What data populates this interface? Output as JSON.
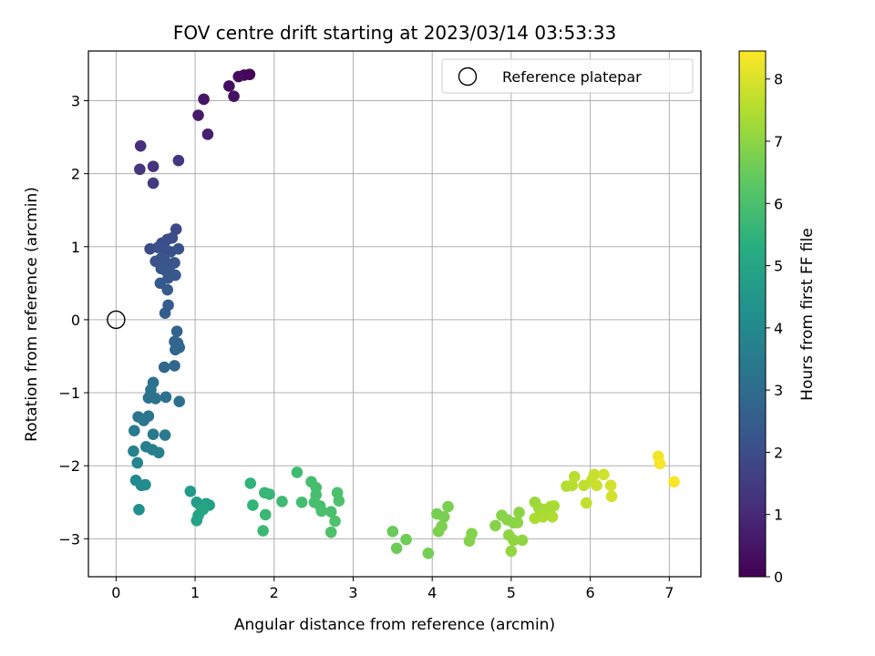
{
  "chart_data": {
    "type": "scatter",
    "title": "FOV centre drift starting at 2023/03/14 03:53:33",
    "xlabel": "Angular distance from reference (arcmin)",
    "ylabel": "Rotation from reference (arcmin)",
    "colorbar_label": "Hours from first FF file",
    "xlim": [
      -0.35,
      7.4
    ],
    "ylim": [
      -3.52,
      3.68
    ],
    "clim": [
      0,
      8.45
    ],
    "x_ticks": [
      0,
      1,
      2,
      3,
      4,
      5,
      6,
      7
    ],
    "y_ticks": [
      -3,
      -2,
      -1,
      0,
      1,
      2,
      3
    ],
    "colorbar_ticks": [
      0,
      1,
      2,
      3,
      4,
      5,
      6,
      7,
      8
    ],
    "grid": true,
    "colormap": "viridis",
    "legend": {
      "placement": "top-right",
      "entries": [
        "Reference platepar"
      ]
    },
    "reference_point": {
      "x": 0,
      "y": 0
    },
    "points": [
      {
        "x": 1.69,
        "y": 3.36,
        "t": 0.05
      },
      {
        "x": 1.62,
        "y": 3.35,
        "t": 0.15
      },
      {
        "x": 1.55,
        "y": 3.33,
        "t": 0.25
      },
      {
        "x": 1.43,
        "y": 3.2,
        "t": 0.35
      },
      {
        "x": 1.49,
        "y": 3.06,
        "t": 0.45
      },
      {
        "x": 1.11,
        "y": 3.02,
        "t": 0.55
      },
      {
        "x": 1.04,
        "y": 2.8,
        "t": 0.65
      },
      {
        "x": 1.16,
        "y": 2.54,
        "t": 0.75
      },
      {
        "x": 0.31,
        "y": 2.38,
        "t": 1.15
      },
      {
        "x": 0.47,
        "y": 2.1,
        "t": 1.25
      },
      {
        "x": 0.3,
        "y": 2.06,
        "t": 1.3
      },
      {
        "x": 0.79,
        "y": 2.18,
        "t": 1.35
      },
      {
        "x": 0.47,
        "y": 1.87,
        "t": 1.45
      },
      {
        "x": 0.76,
        "y": 1.24,
        "t": 1.85
      },
      {
        "x": 0.43,
        "y": 0.97,
        "t": 1.9
      },
      {
        "x": 0.58,
        "y": 1.05,
        "t": 1.95
      },
      {
        "x": 0.65,
        "y": 1.1,
        "t": 2.0
      },
      {
        "x": 0.71,
        "y": 1.12,
        "t": 2.02
      },
      {
        "x": 0.53,
        "y": 0.99,
        "t": 2.05
      },
      {
        "x": 0.62,
        "y": 0.97,
        "t": 2.1
      },
      {
        "x": 0.79,
        "y": 0.97,
        "t": 2.12
      },
      {
        "x": 0.69,
        "y": 0.93,
        "t": 2.15
      },
      {
        "x": 0.5,
        "y": 0.8,
        "t": 2.18
      },
      {
        "x": 0.57,
        "y": 0.84,
        "t": 2.2
      },
      {
        "x": 0.62,
        "y": 0.8,
        "t": 2.22
      },
      {
        "x": 0.74,
        "y": 0.78,
        "t": 2.24
      },
      {
        "x": 0.68,
        "y": 0.73,
        "t": 2.26
      },
      {
        "x": 0.57,
        "y": 0.7,
        "t": 2.28
      },
      {
        "x": 0.63,
        "y": 0.67,
        "t": 2.3
      },
      {
        "x": 0.75,
        "y": 0.61,
        "t": 2.32
      },
      {
        "x": 0.66,
        "y": 0.57,
        "t": 2.34
      },
      {
        "x": 0.56,
        "y": 0.5,
        "t": 2.36
      },
      {
        "x": 0.65,
        "y": 0.41,
        "t": 2.4
      },
      {
        "x": 0.66,
        "y": 0.2,
        "t": 2.45
      },
      {
        "x": 0.62,
        "y": 0.09,
        "t": 2.5
      },
      {
        "x": 0.77,
        "y": -0.16,
        "t": 2.7
      },
      {
        "x": 0.74,
        "y": -0.3,
        "t": 2.75
      },
      {
        "x": 0.78,
        "y": -0.32,
        "t": 2.78
      },
      {
        "x": 0.8,
        "y": -0.38,
        "t": 2.8
      },
      {
        "x": 0.75,
        "y": -0.41,
        "t": 2.82
      },
      {
        "x": 0.61,
        "y": -0.65,
        "t": 2.85
      },
      {
        "x": 0.74,
        "y": -0.63,
        "t": 2.88
      },
      {
        "x": 0.8,
        "y": -1.12,
        "t": 3.1
      },
      {
        "x": 0.63,
        "y": -1.06,
        "t": 3.15
      },
      {
        "x": 0.5,
        "y": -1.08,
        "t": 3.18
      },
      {
        "x": 0.47,
        "y": -0.86,
        "t": 3.2
      },
      {
        "x": 0.44,
        "y": -0.96,
        "t": 3.22
      },
      {
        "x": 0.41,
        "y": -1.07,
        "t": 3.25
      },
      {
        "x": 0.41,
        "y": -1.32,
        "t": 3.3
      },
      {
        "x": 0.28,
        "y": -1.33,
        "t": 3.35
      },
      {
        "x": 0.35,
        "y": -1.38,
        "t": 3.38
      },
      {
        "x": 0.62,
        "y": -1.58,
        "t": 3.4
      },
      {
        "x": 0.47,
        "y": -1.57,
        "t": 3.45
      },
      {
        "x": 0.23,
        "y": -1.52,
        "t": 3.5
      },
      {
        "x": 0.38,
        "y": -1.74,
        "t": 3.6
      },
      {
        "x": 0.46,
        "y": -1.78,
        "t": 3.65
      },
      {
        "x": 0.54,
        "y": -1.82,
        "t": 3.7
      },
      {
        "x": 0.22,
        "y": -1.8,
        "t": 3.75
      },
      {
        "x": 0.27,
        "y": -1.96,
        "t": 3.8
      },
      {
        "x": 0.25,
        "y": -2.2,
        "t": 4.0
      },
      {
        "x": 0.32,
        "y": -2.27,
        "t": 4.05
      },
      {
        "x": 0.37,
        "y": -2.26,
        "t": 4.1
      },
      {
        "x": 0.29,
        "y": -2.6,
        "t": 4.2
      },
      {
        "x": 0.94,
        "y": -2.35,
        "t": 4.6
      },
      {
        "x": 1.02,
        "y": -2.5,
        "t": 4.7
      },
      {
        "x": 1.08,
        "y": -2.57,
        "t": 4.75
      },
      {
        "x": 1.14,
        "y": -2.52,
        "t": 4.8
      },
      {
        "x": 1.18,
        "y": -2.54,
        "t": 4.85
      },
      {
        "x": 1.04,
        "y": -2.68,
        "t": 4.9
      },
      {
        "x": 1.02,
        "y": -2.75,
        "t": 4.95
      },
      {
        "x": 1.1,
        "y": -2.6,
        "t": 5.0
      },
      {
        "x": 1.7,
        "y": -2.24,
        "t": 5.5
      },
      {
        "x": 1.73,
        "y": -2.54,
        "t": 5.55
      },
      {
        "x": 1.88,
        "y": -2.37,
        "t": 5.6
      },
      {
        "x": 1.94,
        "y": -2.39,
        "t": 5.62
      },
      {
        "x": 1.89,
        "y": -2.67,
        "t": 5.65
      },
      {
        "x": 1.86,
        "y": -2.89,
        "t": 5.7
      },
      {
        "x": 2.1,
        "y": -2.49,
        "t": 5.75
      },
      {
        "x": 2.29,
        "y": -2.09,
        "t": 5.8
      },
      {
        "x": 2.35,
        "y": -2.5,
        "t": 5.85
      },
      {
        "x": 2.47,
        "y": -2.22,
        "t": 5.88
      },
      {
        "x": 2.53,
        "y": -2.3,
        "t": 5.9
      },
      {
        "x": 2.53,
        "y": -2.4,
        "t": 5.92
      },
      {
        "x": 2.51,
        "y": -2.5,
        "t": 5.94
      },
      {
        "x": 2.58,
        "y": -2.55,
        "t": 5.96
      },
      {
        "x": 2.6,
        "y": -2.62,
        "t": 5.98
      },
      {
        "x": 2.72,
        "y": -2.63,
        "t": 6.0
      },
      {
        "x": 2.8,
        "y": -2.37,
        "t": 6.02
      },
      {
        "x": 2.82,
        "y": -2.48,
        "t": 6.04
      },
      {
        "x": 2.77,
        "y": -2.76,
        "t": 6.06
      },
      {
        "x": 2.72,
        "y": -2.91,
        "t": 6.08
      },
      {
        "x": 3.5,
        "y": -2.9,
        "t": 6.5
      },
      {
        "x": 3.55,
        "y": -3.13,
        "t": 6.55
      },
      {
        "x": 3.67,
        "y": -3.01,
        "t": 6.6
      },
      {
        "x": 3.95,
        "y": -3.2,
        "t": 6.65
      },
      {
        "x": 4.06,
        "y": -2.66,
        "t": 6.7
      },
      {
        "x": 4.15,
        "y": -2.7,
        "t": 6.72
      },
      {
        "x": 4.2,
        "y": -2.56,
        "t": 6.75
      },
      {
        "x": 4.12,
        "y": -2.83,
        "t": 6.78
      },
      {
        "x": 4.08,
        "y": -2.9,
        "t": 6.8
      },
      {
        "x": 4.5,
        "y": -2.93,
        "t": 6.85
      },
      {
        "x": 4.47,
        "y": -3.03,
        "t": 6.88
      },
      {
        "x": 4.8,
        "y": -2.82,
        "t": 6.9
      },
      {
        "x": 4.88,
        "y": -2.68,
        "t": 6.92
      },
      {
        "x": 4.95,
        "y": -2.74,
        "t": 6.94
      },
      {
        "x": 5.03,
        "y": -2.78,
        "t": 6.96
      },
      {
        "x": 5.1,
        "y": -2.64,
        "t": 6.98
      },
      {
        "x": 5.08,
        "y": -2.78,
        "t": 7.0
      },
      {
        "x": 4.97,
        "y": -2.95,
        "t": 7.02
      },
      {
        "x": 5.03,
        "y": -3.02,
        "t": 7.04
      },
      {
        "x": 5.14,
        "y": -3.02,
        "t": 7.06
      },
      {
        "x": 5.0,
        "y": -3.17,
        "t": 7.08
      },
      {
        "x": 5.3,
        "y": -2.5,
        "t": 7.2
      },
      {
        "x": 5.35,
        "y": -2.58,
        "t": 7.25
      },
      {
        "x": 5.42,
        "y": -2.6,
        "t": 7.3
      },
      {
        "x": 5.5,
        "y": -2.56,
        "t": 7.35
      },
      {
        "x": 5.54,
        "y": -2.55,
        "t": 7.38
      },
      {
        "x": 5.3,
        "y": -2.72,
        "t": 7.4
      },
      {
        "x": 5.4,
        "y": -2.7,
        "t": 7.42
      },
      {
        "x": 5.52,
        "y": -2.7,
        "t": 7.44
      },
      {
        "x": 5.7,
        "y": -2.28,
        "t": 7.5
      },
      {
        "x": 5.77,
        "y": -2.27,
        "t": 7.55
      },
      {
        "x": 5.8,
        "y": -2.15,
        "t": 7.6
      },
      {
        "x": 5.92,
        "y": -2.27,
        "t": 7.65
      },
      {
        "x": 5.95,
        "y": -2.51,
        "t": 7.68
      },
      {
        "x": 6.02,
        "y": -2.2,
        "t": 7.7
      },
      {
        "x": 6.05,
        "y": -2.12,
        "t": 7.75
      },
      {
        "x": 6.08,
        "y": -2.27,
        "t": 7.8
      },
      {
        "x": 6.17,
        "y": -2.12,
        "t": 7.85
      },
      {
        "x": 6.26,
        "y": -2.27,
        "t": 7.9
      },
      {
        "x": 6.27,
        "y": -2.42,
        "t": 7.92
      },
      {
        "x": 6.86,
        "y": -1.87,
        "t": 8.3
      },
      {
        "x": 6.88,
        "y": -1.97,
        "t": 8.35
      },
      {
        "x": 7.06,
        "y": -2.22,
        "t": 8.4
      }
    ]
  }
}
